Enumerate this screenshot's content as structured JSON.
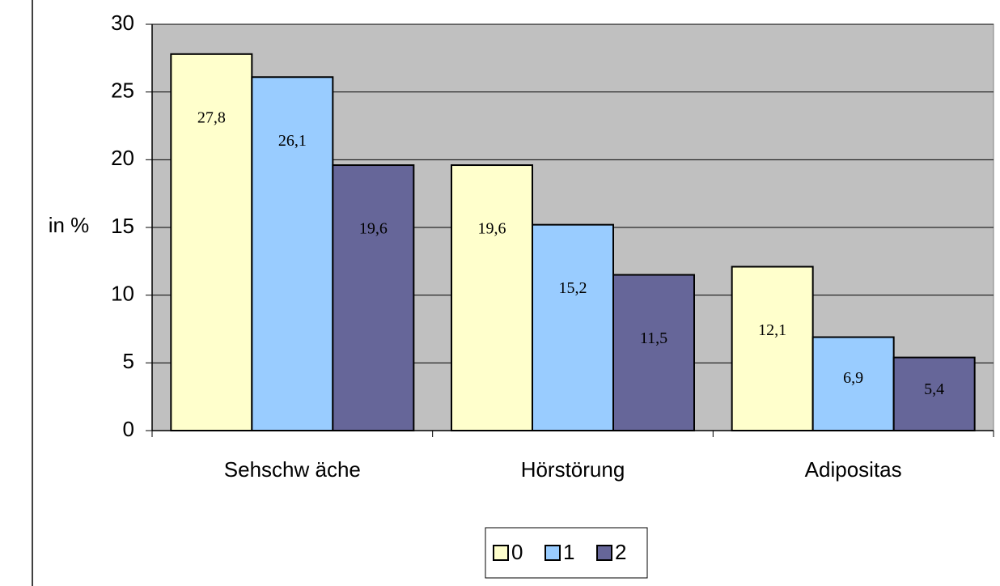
{
  "chart_data": {
    "type": "bar",
    "y_label": "in %",
    "categories": [
      "Sehschw äche",
      "Hörstörung",
      "Adipositas"
    ],
    "series": [
      {
        "name": "0",
        "color": "#ffffcc",
        "values": [
          27.8,
          19.6,
          12.1
        ],
        "value_labels": [
          "27,8",
          "19,6",
          "12,1"
        ]
      },
      {
        "name": "1",
        "color": "#99ccff",
        "values": [
          26.1,
          15.2,
          6.9
        ],
        "value_labels": [
          "26,1",
          "15,2",
          "6,9"
        ]
      },
      {
        "name": "2",
        "color": "#666699",
        "values": [
          19.6,
          11.5,
          5.4
        ],
        "value_labels": [
          "19,6",
          "11,5",
          "5,4"
        ]
      }
    ],
    "ylim": [
      0,
      30
    ],
    "yticks": [
      0,
      5,
      10,
      15,
      20,
      25,
      30
    ],
    "grid": true,
    "legend": "bottom",
    "plot_background": "#c0c0c0"
  }
}
